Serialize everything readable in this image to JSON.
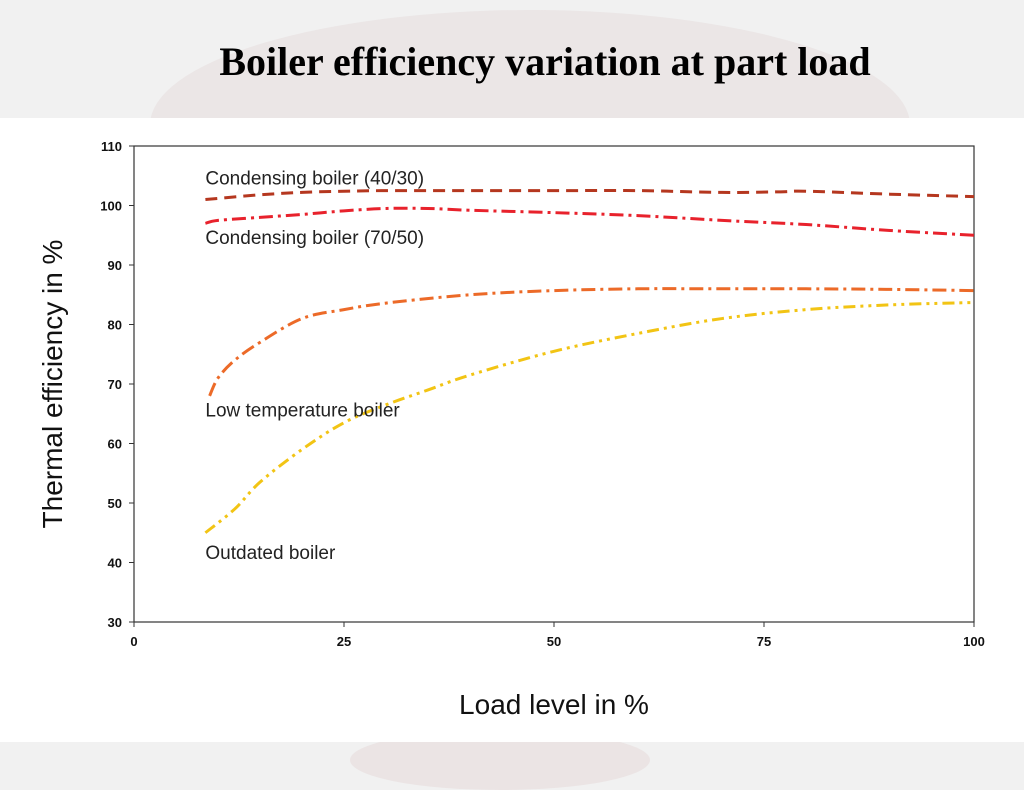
{
  "slide": {
    "title": "Boiler efficiency variation at part load"
  },
  "chart_data": {
    "type": "line",
    "title": "",
    "xlabel": "Load level in %",
    "ylabel": "Thermal efficiency in %",
    "xlim": [
      0,
      100
    ],
    "ylim": [
      30,
      110
    ],
    "xticks": [
      0,
      25,
      50,
      75,
      100
    ],
    "yticks": [
      30,
      40,
      50,
      60,
      70,
      80,
      90,
      100,
      110
    ],
    "grid": false,
    "series": [
      {
        "name": "Condensing boiler (40/30)",
        "color": "#b5371f",
        "dash": "dashed",
        "x": [
          8.5,
          15,
          20,
          25,
          30,
          40,
          50,
          60,
          70,
          77,
          80,
          90,
          100
        ],
        "y": [
          101,
          101.8,
          102.2,
          102.4,
          102.5,
          102.5,
          102.5,
          102.5,
          102.2,
          102.3,
          102.4,
          101.9,
          101.5
        ]
      },
      {
        "name": "Condensing boiler (70/50)",
        "color": "#e8222c",
        "dash": "dash-dot",
        "x": [
          8.5,
          10,
          15,
          20,
          25,
          30,
          35,
          40,
          50,
          60,
          70,
          80,
          90,
          100
        ],
        "y": [
          97,
          97.5,
          98,
          98.5,
          99.1,
          99.5,
          99.5,
          99.2,
          98.8,
          98.3,
          97.5,
          96.8,
          95.8,
          95
        ]
      },
      {
        "name": "Low temperature boiler",
        "color": "#ec6a28",
        "dash": "dash-dot",
        "x": [
          9,
          10,
          12,
          15,
          20,
          25,
          30,
          40,
          50,
          60,
          70,
          80,
          90,
          100
        ],
        "y": [
          68,
          71,
          74,
          77,
          81,
          82.5,
          83.6,
          85,
          85.7,
          86,
          86,
          86,
          85.9,
          85.7
        ]
      },
      {
        "name": "Outdated boiler",
        "color": "#f2c414",
        "dash": "dash-dot-dot",
        "x": [
          8.5,
          12,
          15,
          20,
          25,
          30,
          35,
          40,
          50,
          60,
          70,
          80,
          90,
          100
        ],
        "y": [
          45,
          49,
          53.5,
          59,
          63.5,
          66.5,
          69,
          71.5,
          75.5,
          78.5,
          81,
          82.5,
          83.3,
          83.7
        ]
      }
    ],
    "annotations": [
      {
        "text": "Condensing boiler (40/30)",
        "x": 8.5,
        "y": 103.5
      },
      {
        "text": "Condensing boiler (70/50)",
        "x": 8.5,
        "y": 93.5
      },
      {
        "text": "Low temperature boiler",
        "x": 8.5,
        "y": 64.5
      },
      {
        "text": "Outdated boiler",
        "x": 8.5,
        "y": 40.6
      }
    ]
  }
}
